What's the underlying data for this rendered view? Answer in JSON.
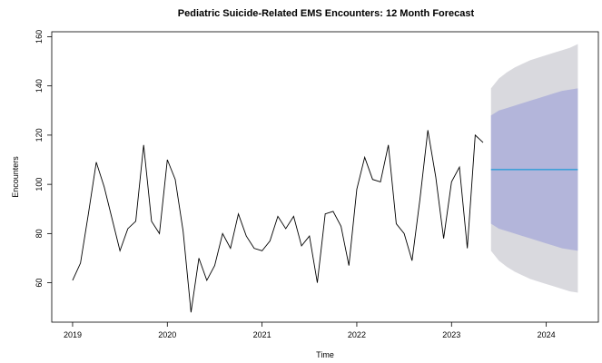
{
  "chart_data": {
    "type": "line",
    "title": "Pediatric Suicide-Related EMS Encounters: 12 Month Forecast",
    "xlabel": "Time",
    "ylabel": "Encounters",
    "xlim": [
      2018.78,
      2024.55
    ],
    "ylim": [
      44,
      162
    ],
    "x_ticks": [
      2019,
      2020,
      2021,
      2022,
      2023,
      2024
    ],
    "x_tick_labels": [
      "2019",
      "2020",
      "2021",
      "2022",
      "2023",
      "2024"
    ],
    "y_ticks": [
      60,
      80,
      100,
      120,
      140,
      160
    ],
    "y_tick_labels": [
      "60",
      "80",
      "100",
      "120",
      "140",
      "160"
    ],
    "grid": false,
    "colors": {
      "observed": "#000000",
      "forecast_mean": "#3fa0d8",
      "interval_80": "#b3b5da",
      "interval_95": "#d9d9de"
    },
    "observed": {
      "start_year": 2019,
      "start_month": 1,
      "values": [
        61,
        68,
        88,
        109,
        99,
        86,
        73,
        82,
        85,
        116,
        85,
        80,
        110,
        102,
        81,
        48,
        70,
        61,
        67,
        80,
        74,
        88,
        79,
        74,
        73,
        77,
        87,
        82,
        87,
        75,
        79,
        60,
        88,
        89,
        83,
        67,
        98,
        111,
        102,
        101,
        116,
        84,
        80,
        69,
        94,
        122,
        103,
        78,
        101,
        107,
        74,
        120,
        117
      ]
    },
    "forecast": {
      "start_year": 2023,
      "start_month": 6,
      "mean": [
        106,
        106,
        106,
        106,
        106,
        106,
        106,
        106,
        106,
        106,
        106,
        106
      ],
      "lo80": [
        84,
        82,
        81,
        80,
        79,
        78,
        77,
        76,
        75,
        74,
        73.5,
        73
      ],
      "hi80": [
        128,
        130,
        131,
        132,
        133,
        134,
        135,
        136,
        137,
        138,
        138.5,
        139
      ],
      "lo95": [
        73,
        69,
        66.5,
        64.5,
        63,
        61.5,
        60.5,
        59.5,
        58.5,
        57.5,
        56.5,
        56
      ],
      "hi95": [
        139,
        143,
        145.5,
        147.5,
        149,
        150.5,
        151.5,
        152.5,
        153.5,
        154.5,
        155.5,
        157
      ]
    }
  }
}
